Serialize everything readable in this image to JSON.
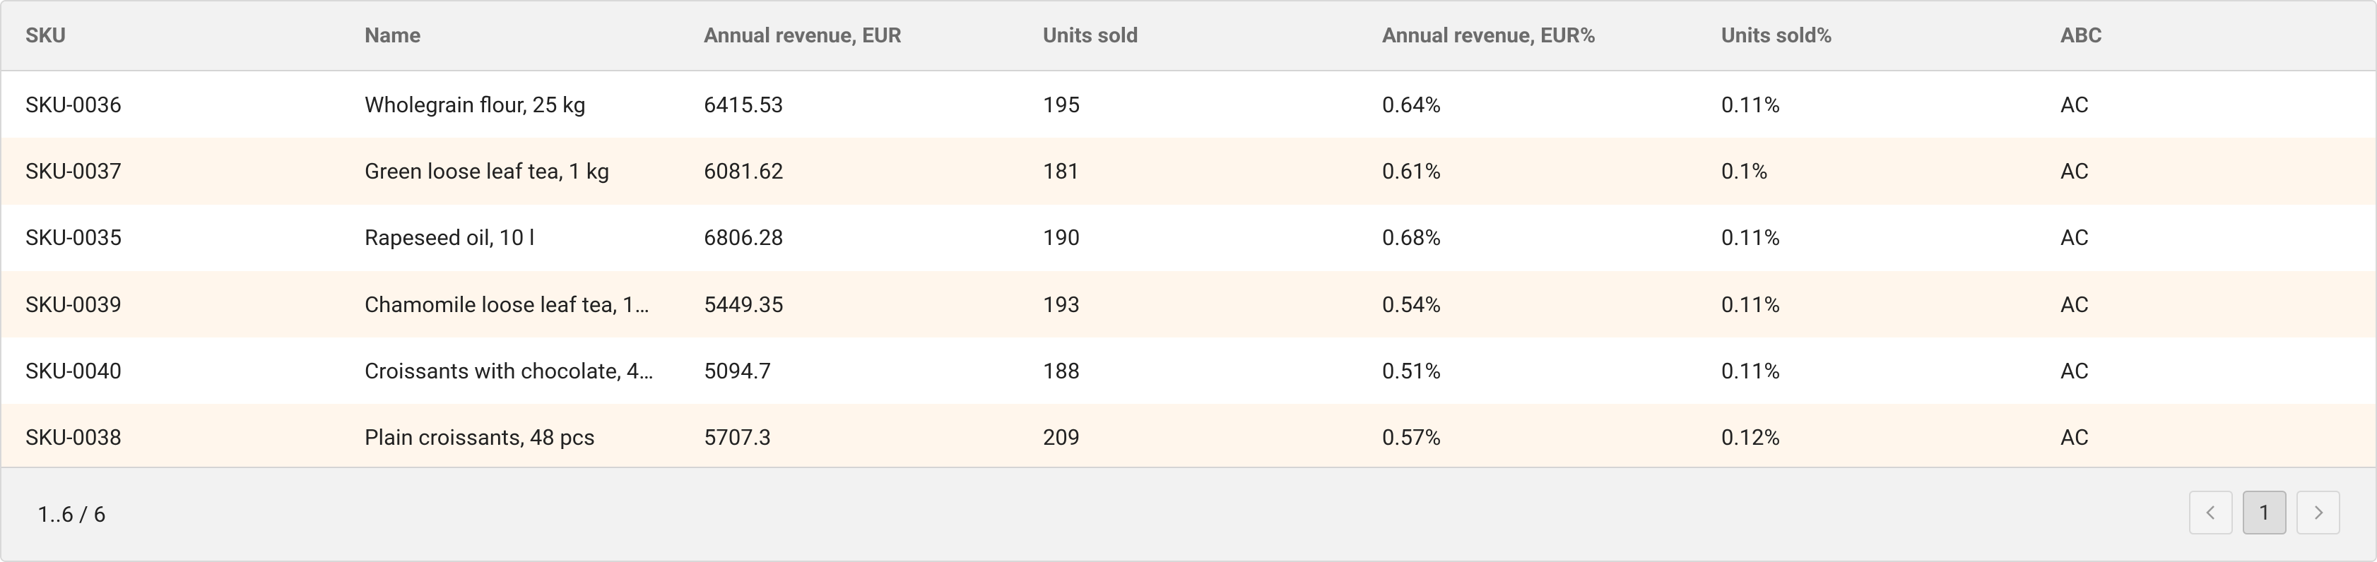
{
  "table": {
    "columns": [
      "SKU",
      "Name",
      "Annual revenue, EUR",
      "Units sold",
      "Annual revenue, EUR%",
      "Units sold%",
      "ABC"
    ],
    "rows": [
      [
        "SKU-0036",
        "Wholegrain flour, 25 kg",
        "6415.53",
        "195",
        "0.64%",
        "0.11%",
        "AC"
      ],
      [
        "SKU-0037",
        "Green loose leaf tea, 1 kg",
        "6081.62",
        "181",
        "0.61%",
        "0.1%",
        "AC"
      ],
      [
        "SKU-0035",
        "Rapeseed oil, 10 l",
        "6806.28",
        "190",
        "0.68%",
        "0.11%",
        "AC"
      ],
      [
        "SKU-0039",
        "Chamomile loose leaf tea, 1…",
        "5449.35",
        "193",
        "0.54%",
        "0.11%",
        "AC"
      ],
      [
        "SKU-0040",
        "Croissants with chocolate, 4…",
        "5094.7",
        "188",
        "0.51%",
        "0.11%",
        "AC"
      ],
      [
        "SKU-0038",
        "Plain croissants, 48 pcs",
        "5707.3",
        "209",
        "0.57%",
        "0.12%",
        "AC"
      ]
    ]
  },
  "footer": {
    "range": "1..6 / 6",
    "page": "1"
  }
}
